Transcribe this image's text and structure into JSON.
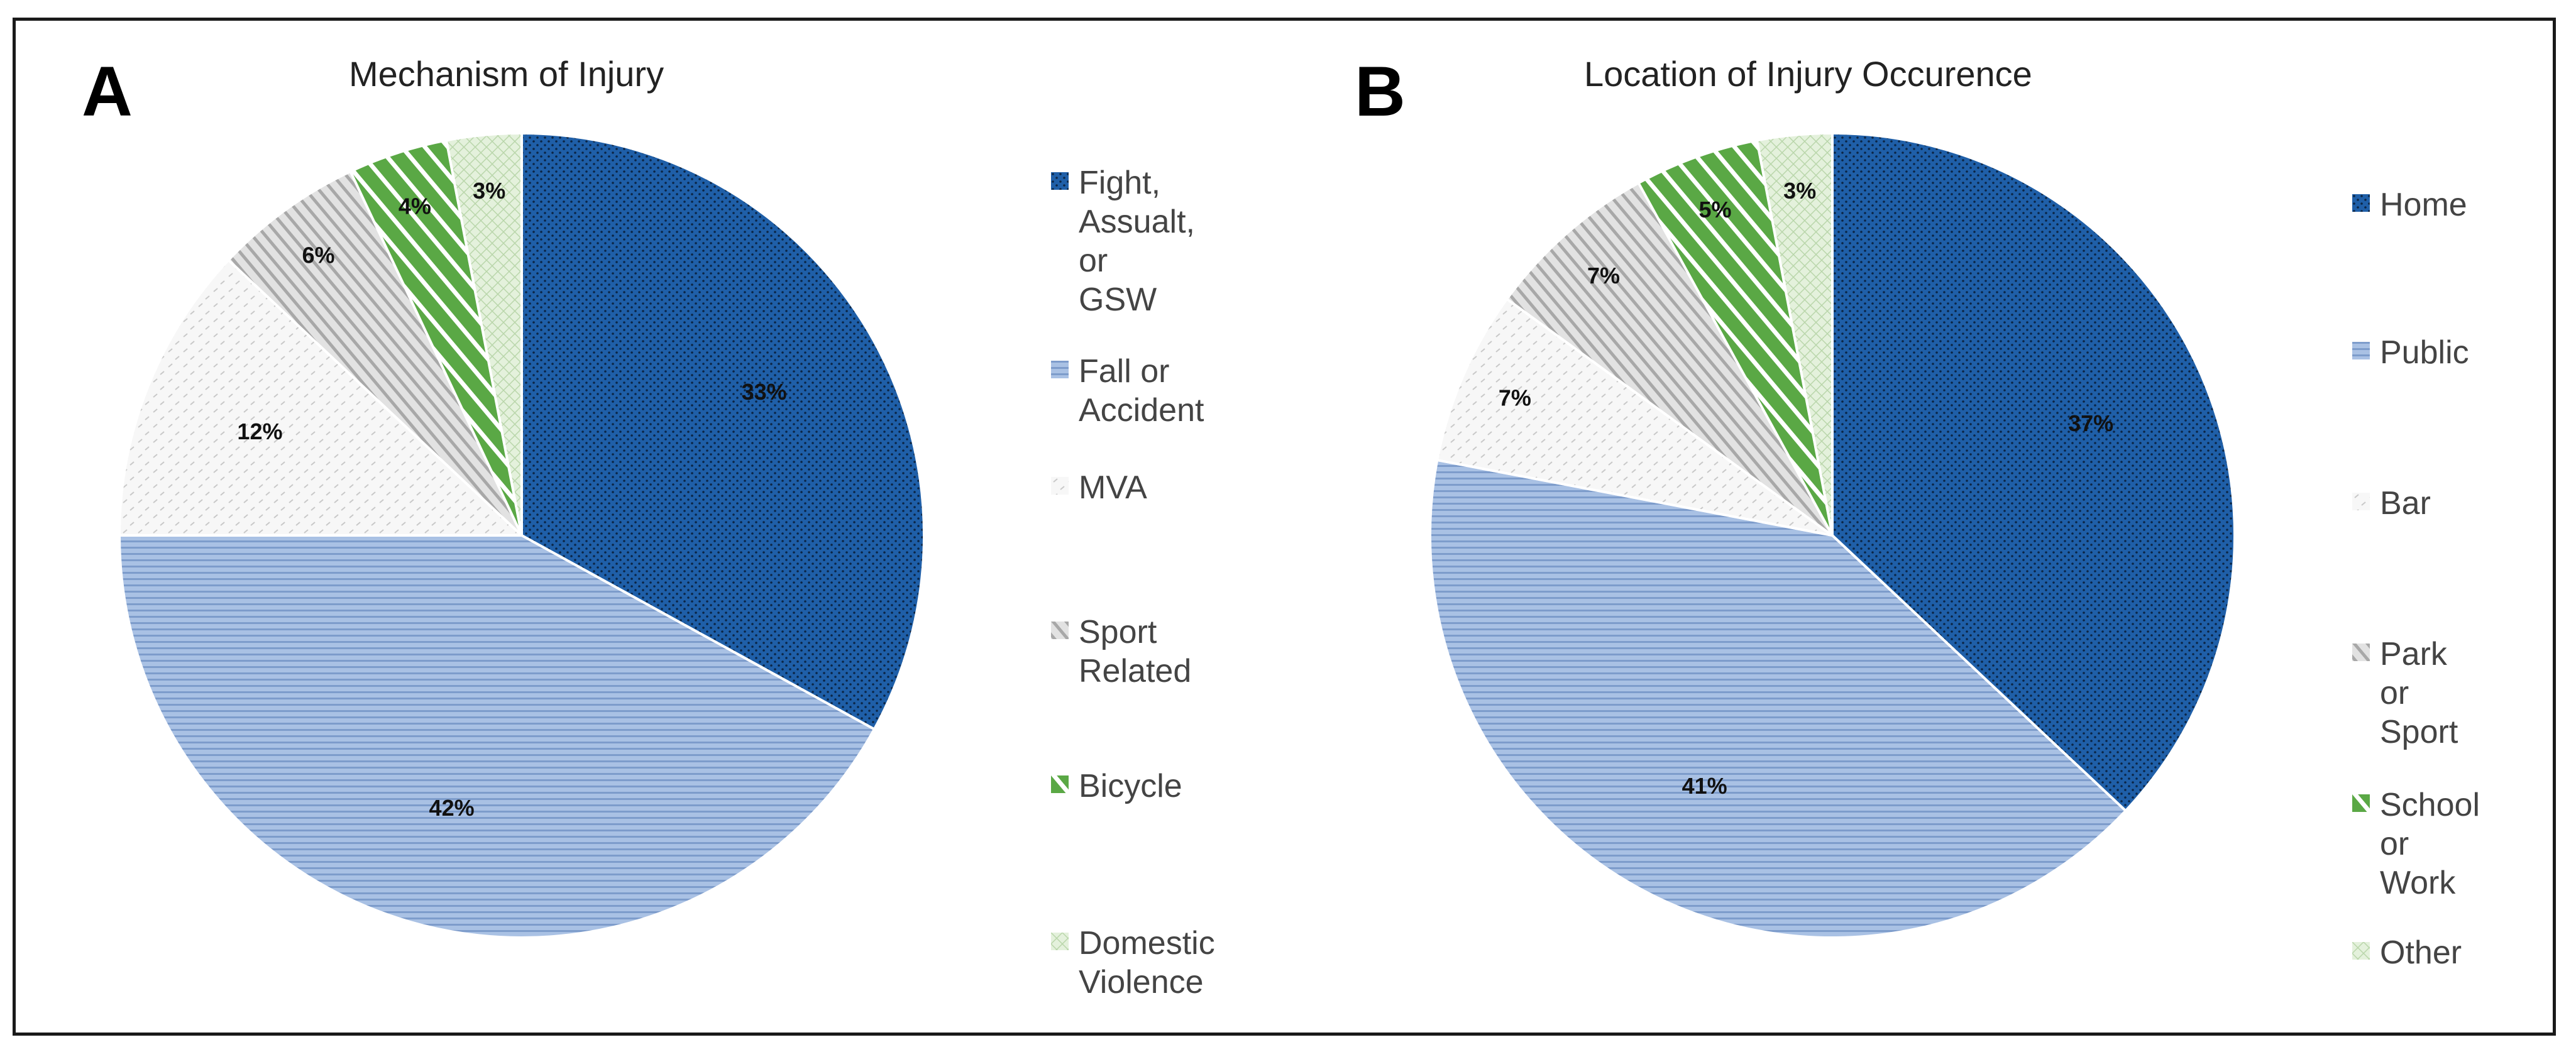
{
  "chart_data": [
    {
      "panel": "A",
      "type": "pie",
      "title": "Mechanism of Injury",
      "categories": [
        "Fight, Assualt, or GSW",
        "Fall or Accident",
        "MVA",
        "Sport Related",
        "Bicycle",
        "Domestic Violence"
      ],
      "legend_lines": [
        [
          "Fight,",
          "Assualt, or",
          "GSW"
        ],
        [
          "Fall or",
          "Accident"
        ],
        [
          "MVA"
        ],
        [
          "Sport",
          "Related"
        ],
        [
          "Bicycle"
        ],
        [
          "Domestic",
          "Violence"
        ]
      ],
      "values": [
        33,
        42,
        12,
        6,
        4,
        3
      ],
      "labels": [
        "33%",
        "42%",
        "12%",
        "6%",
        "4%",
        "3%"
      ],
      "legend_position": "right"
    },
    {
      "panel": "B",
      "type": "pie",
      "title": "Location of Injury Occurence",
      "categories": [
        "Home",
        "Public",
        "Bar",
        "Park or Sport",
        "School or Work",
        "Other"
      ],
      "legend_lines": [
        [
          "Home"
        ],
        [
          "Public"
        ],
        [
          "Bar"
        ],
        [
          "Park or",
          "Sport"
        ],
        [
          "School or",
          "Work"
        ],
        [
          "Other"
        ]
      ],
      "values": [
        37,
        41,
        7,
        7,
        5,
        3
      ],
      "labels": [
        "37%",
        "41%",
        "7%",
        "7%",
        "5%",
        "3%"
      ],
      "legend_position": "right"
    }
  ],
  "series_styles": [
    {
      "name": "dark-blue-dotted",
      "fill": "#1f5fa8",
      "pattern": "dots",
      "pattern_color": "#0b2545"
    },
    {
      "name": "light-blue-horizontal-stripes",
      "fill": "#a9c1e4",
      "pattern": "hlines",
      "pattern_color": "#7d9ccb"
    },
    {
      "name": "white-dashed",
      "fill": "#f7f7f7",
      "pattern": "dashes",
      "pattern_color": "#c8c8c8"
    },
    {
      "name": "gray-diagonal-stripes",
      "fill": "#e2e2e2",
      "pattern": "diag",
      "pattern_color": "#a8a8a8"
    },
    {
      "name": "green-diagonal-stripes",
      "fill": "#5aa845",
      "pattern": "diag-wide",
      "pattern_color": "#ffffff"
    },
    {
      "name": "pale-green-crosshatch",
      "fill": "#e4f1dc",
      "pattern": "cross",
      "pattern_color": "#b9d6aa"
    }
  ]
}
